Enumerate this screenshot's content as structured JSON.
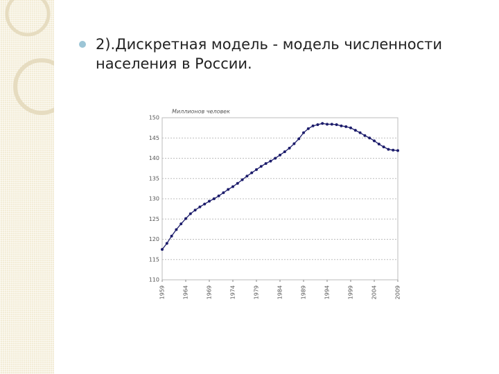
{
  "slide": {
    "text": "2).Дискретная модель  - модель численности населения в России."
  },
  "chart_data": {
    "type": "line",
    "y_label": "Миллионов человек",
    "x": [
      1959,
      1960,
      1961,
      1962,
      1963,
      1964,
      1965,
      1966,
      1967,
      1968,
      1969,
      1970,
      1971,
      1972,
      1973,
      1974,
      1975,
      1976,
      1977,
      1978,
      1979,
      1980,
      1981,
      1982,
      1983,
      1984,
      1985,
      1986,
      1987,
      1988,
      1989,
      1990,
      1991,
      1992,
      1993,
      1994,
      1995,
      1996,
      1997,
      1998,
      1999,
      2000,
      2001,
      2002,
      2003,
      2004,
      2005,
      2006,
      2007,
      2008,
      2009
    ],
    "series": [
      {
        "color": "#1c1c6b",
        "values": [
          117.5,
          119.0,
          120.8,
          122.4,
          123.8,
          125.1,
          126.3,
          127.2,
          128.0,
          128.7,
          129.4,
          130.0,
          130.7,
          131.5,
          132.3,
          133.0,
          133.8,
          134.7,
          135.6,
          136.4,
          137.2,
          138.0,
          138.7,
          139.3,
          140.0,
          140.8,
          141.6,
          142.5,
          143.6,
          144.8,
          146.3,
          147.3,
          148.0,
          148.3,
          148.6,
          148.4,
          148.4,
          148.3,
          148.0,
          147.8,
          147.5,
          146.9,
          146.3,
          145.6,
          145.0,
          144.3,
          143.5,
          142.8,
          142.2,
          142.0,
          141.9
        ]
      }
    ],
    "xlim": [
      1959,
      2009
    ],
    "xticks": [
      1959,
      1964,
      1969,
      1974,
      1979,
      1984,
      1989,
      1994,
      1999,
      2004,
      2009
    ],
    "ylim": [
      110,
      150
    ],
    "yticks": [
      110,
      115,
      120,
      125,
      130,
      135,
      140,
      145,
      150
    ],
    "grid": true
  }
}
